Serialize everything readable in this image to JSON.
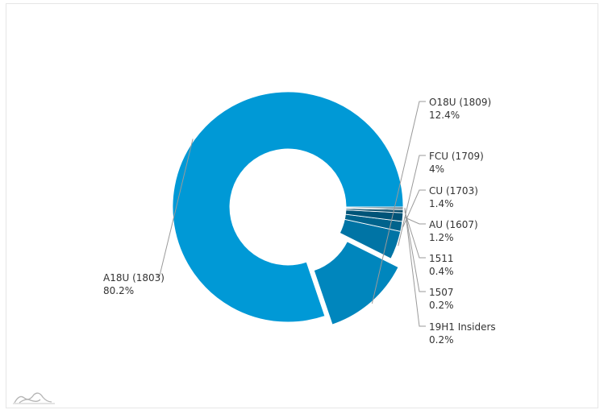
{
  "chart_data": {
    "type": "pie",
    "donut": true,
    "start_angle_deg": 0,
    "direction": "counterclockwise",
    "colors": {
      "A18U (1803)": "#0099d6",
      "O18U (1809)": "#0086bd",
      "FCU (1709)": "#0074a5",
      "CU (1703)": "#00638c",
      "AU (1607)": "#005478",
      "1511": "#004766",
      "1507": "#003b55",
      "19H1 Insiders": "#002f44"
    },
    "slices": [
      {
        "name": "A18U (1803)",
        "percent_label": "80.2%",
        "value": 80.2,
        "exploded": false
      },
      {
        "name": "O18U (1809)",
        "percent_label": "12.4%",
        "value": 12.4,
        "exploded": true
      },
      {
        "name": "FCU (1709)",
        "percent_label": "4%",
        "value": 4.0,
        "exploded": false
      },
      {
        "name": "CU (1703)",
        "percent_label": "1.4%",
        "value": 1.4,
        "exploded": false
      },
      {
        "name": "AU (1607)",
        "percent_label": "1.2%",
        "value": 1.2,
        "exploded": false
      },
      {
        "name": "1511",
        "percent_label": "0.4%",
        "value": 0.4,
        "exploded": false
      },
      {
        "name": "1507",
        "percent_label": "0.2%",
        "value": 0.2,
        "exploded": false
      },
      {
        "name": "19H1 Insiders",
        "percent_label": "0.2%",
        "value": 0.2,
        "exploded": false
      }
    ]
  },
  "watermark_icon": "chart-logo-icon"
}
